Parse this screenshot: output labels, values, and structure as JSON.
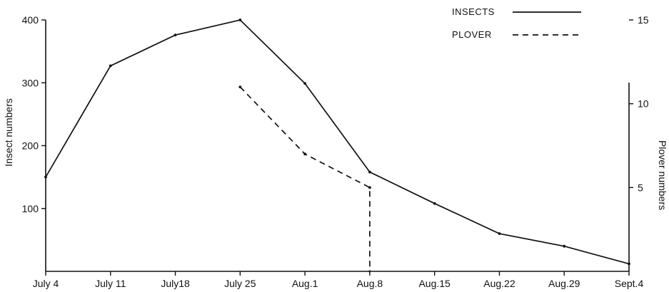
{
  "chart_data": {
    "type": "line",
    "title": "",
    "x": [
      "July 4",
      "July 11",
      "July18",
      "July 25",
      "Aug.1",
      "Aug.8",
      "Aug.15",
      "Aug.22",
      "Aug.29",
      "Sept.4"
    ],
    "xlabel": "",
    "ylabel_left": "Insect numbers",
    "ylabel_right": "Plover numbers",
    "left_axis": {
      "ylim": [
        0,
        400
      ],
      "ticks": [
        100,
        200,
        300,
        400
      ]
    },
    "right_axis": {
      "ylim": [
        0,
        15
      ],
      "ticks": [
        5,
        10,
        15
      ]
    },
    "series": [
      {
        "name": "INSECTS",
        "axis": "left",
        "style": "solid",
        "color": "#111111",
        "points": [
          {
            "x": "July 4",
            "y": 150
          },
          {
            "x": "July 11",
            "y": 327
          },
          {
            "x": "July18",
            "y": 376
          },
          {
            "x": "July 25",
            "y": 400
          },
          {
            "x": "Aug.1",
            "y": 299
          },
          {
            "x": "Aug.8",
            "y": 158
          },
          {
            "x": "Aug.15",
            "y": 108
          },
          {
            "x": "Aug.22",
            "y": 60
          },
          {
            "x": "Aug.29",
            "y": 40
          },
          {
            "x": "Sept.4",
            "y": 12
          }
        ]
      },
      {
        "name": "PLOVER",
        "axis": "right",
        "style": "dashed",
        "color": "#111111",
        "points": [
          {
            "x": "July 25",
            "y": 11
          },
          {
            "x": "Aug.1",
            "y": 7
          },
          {
            "x": "Aug.8",
            "y": 5
          },
          {
            "x": "Aug.8",
            "y": 0
          }
        ]
      }
    ],
    "legend": {
      "placement": "top-right",
      "entries": [
        {
          "label": "INSECTS",
          "style": "solid"
        },
        {
          "label": "PLOVER",
          "style": "dashed"
        }
      ]
    },
    "grid": false
  }
}
